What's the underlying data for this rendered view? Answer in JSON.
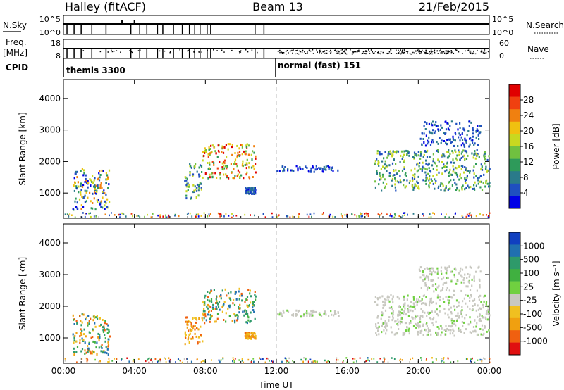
{
  "header": {
    "station": "Halley (fitACF)",
    "beam": "Beam 13",
    "date": "21/Feb/2015"
  },
  "strips": {
    "nsky": {
      "label": "N.Sky",
      "ticks": [
        "10^5",
        "10^0"
      ]
    },
    "nsearch": {
      "label": "N.Search",
      "ticks": [
        "10^5",
        "10^0"
      ]
    },
    "freq": {
      "label_line1": "Freq.",
      "label_line2": "[MHz]",
      "ticks": [
        "18",
        "8"
      ]
    },
    "nave": {
      "label": "Nave",
      "ticks": [
        "60",
        "0"
      ]
    },
    "cpid": {
      "label": "CPID",
      "modes": [
        {
          "name": "themis 3300",
          "start_hour": 0.0
        },
        {
          "name": "normal (fast) 151",
          "start_hour": 12.0
        }
      ]
    },
    "gap_hours": [
      0.2,
      0.6,
      1.0,
      1.6,
      2.4,
      3.8,
      4.3,
      4.7,
      5.3,
      5.6,
      6.2,
      6.7,
      7.1,
      7.4,
      7.7,
      8.1,
      8.3,
      10.8,
      11.3
    ]
  },
  "chart_data": [
    {
      "type": "heatmap",
      "name": "power",
      "ylabel": "Slant Range [km]",
      "xlabel": "",
      "xlim": [
        0,
        24
      ],
      "ylim": [
        200,
        4600
      ],
      "yticks": [
        1000,
        2000,
        3000,
        4000
      ],
      "xticks": [
        0,
        4,
        8,
        12,
        16,
        20,
        24
      ],
      "xtick_labels": [
        "00:00",
        "04:00",
        "08:00",
        "12:00",
        "16:00",
        "20:00",
        "00:00"
      ],
      "colorbar": {
        "label": "Power [dB]",
        "ticks": [
          "4",
          "8",
          "12",
          "16",
          "20",
          "24",
          "28"
        ],
        "colors": [
          "#0000e6",
          "#1f4fc0",
          "#2a7a8a",
          "#2e9a5a",
          "#70c040",
          "#c8d820",
          "#f0c010",
          "#f08010",
          "#f04010",
          "#e00000"
        ]
      },
      "echo_regions": [
        {
          "t": [
            0.5,
            2.6
          ],
          "r": [
            500,
            1800
          ],
          "level": "mixed"
        },
        {
          "t": [
            6.8,
            7.8
          ],
          "r": [
            800,
            2000
          ],
          "level": "medium"
        },
        {
          "t": [
            7.8,
            10.8
          ],
          "r": [
            1500,
            2600
          ],
          "level": "high"
        },
        {
          "t": [
            10.2,
            10.8
          ],
          "r": [
            1000,
            1200
          ],
          "level": "low"
        },
        {
          "t": [
            12.0,
            15.5
          ],
          "r": [
            1700,
            1900
          ],
          "level": "low"
        },
        {
          "t": [
            17.5,
            24.0
          ],
          "r": [
            1100,
            2400
          ],
          "level": "medium"
        },
        {
          "t": [
            20.0,
            23.5
          ],
          "r": [
            2500,
            3300
          ],
          "level": "low"
        }
      ]
    },
    {
      "type": "heatmap",
      "name": "velocity",
      "ylabel": "Slant Range [km]",
      "xlabel": "Time UT",
      "xlim": [
        0,
        24
      ],
      "ylim": [
        200,
        4600
      ],
      "yticks": [
        1000,
        2000,
        3000,
        4000
      ],
      "xticks": [
        0,
        4,
        8,
        12,
        16,
        20,
        24
      ],
      "xtick_labels": [
        "00:00",
        "04:00",
        "08:00",
        "12:00",
        "16:00",
        "20:00",
        "00:00"
      ],
      "colorbar": {
        "label": "Velocity [m s⁻¹]",
        "ticks": [
          "1000",
          "500",
          "100",
          "25",
          "-25",
          "-100",
          "-500",
          "-1000"
        ],
        "colors": [
          "#1040c0",
          "#2070b0",
          "#2e9a6a",
          "#40b040",
          "#70d040",
          "#c8c8c0",
          "#f0c020",
          "#f0a010",
          "#f06010",
          "#e01010"
        ]
      },
      "echo_regions": [
        {
          "t": [
            0.5,
            2.6
          ],
          "r": [
            500,
            1800
          ],
          "level": "mixed"
        },
        {
          "t": [
            6.8,
            7.8
          ],
          "r": [
            800,
            1700
          ],
          "level": "away"
        },
        {
          "t": [
            7.8,
            10.8
          ],
          "r": [
            1500,
            2600
          ],
          "level": "mixed"
        },
        {
          "t": [
            10.2,
            10.8
          ],
          "r": [
            1000,
            1200
          ],
          "level": "away"
        },
        {
          "t": [
            12.0,
            15.5
          ],
          "r": [
            1700,
            1900
          ],
          "level": "ground"
        },
        {
          "t": [
            17.5,
            24.0
          ],
          "r": [
            1100,
            2400
          ],
          "level": "ground"
        },
        {
          "t": [
            20.0,
            23.5
          ],
          "r": [
            2500,
            3300
          ],
          "level": "ground"
        }
      ]
    }
  ]
}
